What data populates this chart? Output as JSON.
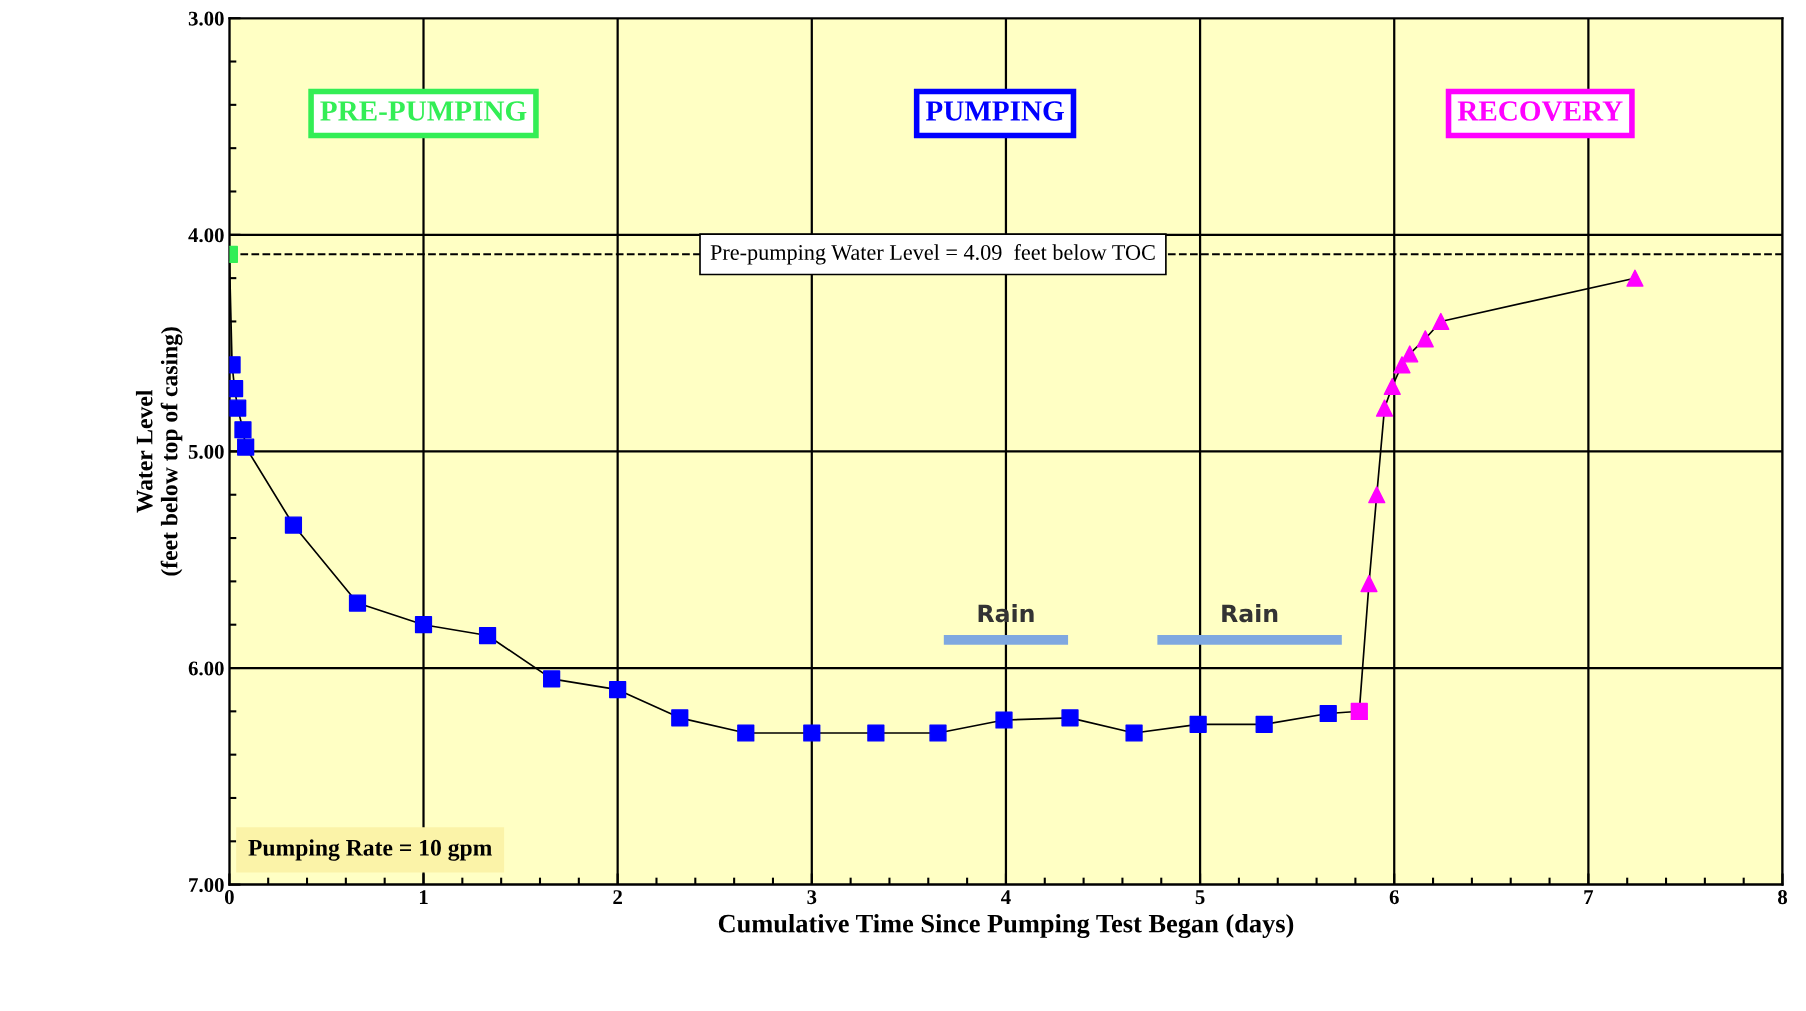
{
  "chart_data": {
    "type": "line",
    "xlabel": "Cumulative Time Since Pumping Test Began (days)",
    "ylabel": "Water Level\n(feet below top of casing)",
    "xlim": [
      0,
      8
    ],
    "xticks": [
      0,
      1,
      2,
      3,
      4,
      5,
      6,
      7,
      8
    ],
    "ylim": [
      7.0,
      3.0
    ],
    "yticks": [
      {
        "value": 3,
        "label": "3.00"
      },
      {
        "value": 4,
        "label": "4.00"
      },
      {
        "value": 5,
        "label": "5.00"
      },
      {
        "value": 6,
        "label": "6.00"
      },
      {
        "value": 7,
        "label": "7.00"
      }
    ],
    "grid": true,
    "line_style": "solid",
    "series": [
      {
        "color": "#0000ff",
        "colors": [
          "#33ee55",
          "#0000ff",
          "#0000ff",
          "#0000ff",
          "#0000ff",
          "#0000ff",
          "#0000ff",
          "#0000ff",
          "#0000ff",
          "#0000ff",
          "#0000ff",
          "#0000ff",
          "#0000ff",
          "#0000ff",
          "#0000ff",
          "#0000ff",
          "#0000ff",
          "#0000ff",
          "#0000ff",
          "#0000ff",
          "#0000ff",
          "#0000ff",
          "#0000ff",
          "#ff00ff"
        ],
        "marker": "square",
        "x": [
          0,
          0.014,
          0.027,
          0.043,
          0.07,
          0.084,
          0.33,
          0.66,
          1.0,
          1.33,
          1.66,
          2.0,
          2.32,
          2.66,
          3.0,
          3.33,
          3.65,
          3.99,
          4.33,
          4.66,
          4.99,
          5.33,
          5.66,
          5.82
        ],
        "values": [
          4.09,
          4.6,
          4.71,
          4.8,
          4.9,
          4.98,
          5.34,
          5.7,
          5.8,
          5.85,
          6.05,
          6.1,
          6.23,
          6.3,
          6.3,
          6.3,
          6.3,
          6.24,
          6.23,
          6.3,
          6.26,
          6.26,
          6.21,
          6.2
        ]
      },
      {
        "color": "#ff00ff",
        "marker": "triangle",
        "x": [
          5.82,
          5.87,
          5.91,
          5.95,
          5.99,
          6.04,
          6.08,
          6.16,
          6.24,
          7.24
        ],
        "values": [
          6.2,
          5.61,
          5.2,
          4.8,
          4.7,
          4.6,
          4.55,
          4.48,
          4.4,
          4.2
        ]
      },
      {
        "type": "line",
        "name": "Rain",
        "color": "#7fa8e0",
        "marker": "none",
        "x": [
          3.68,
          4.32
        ],
        "values": [
          5.87,
          5.87
        ]
      },
      {
        "type": "line",
        "name": "Rain",
        "color": "#7fa8e0",
        "marker": "none",
        "x": [
          4.78,
          5.73
        ],
        "values": [
          5.87,
          5.87
        ]
      }
    ],
    "ref_lines": [
      {
        "axis": "y",
        "value": 4.09,
        "label": "Pre-pumping Water Level = 4.09  feet below TOC",
        "color": "#000000",
        "line_style": "dashed"
      }
    ],
    "annotations": [
      "PRE-PUMPING",
      "PUMPING",
      "RECOVERY",
      "Pumping Rate = 10 gpm"
    ]
  }
}
